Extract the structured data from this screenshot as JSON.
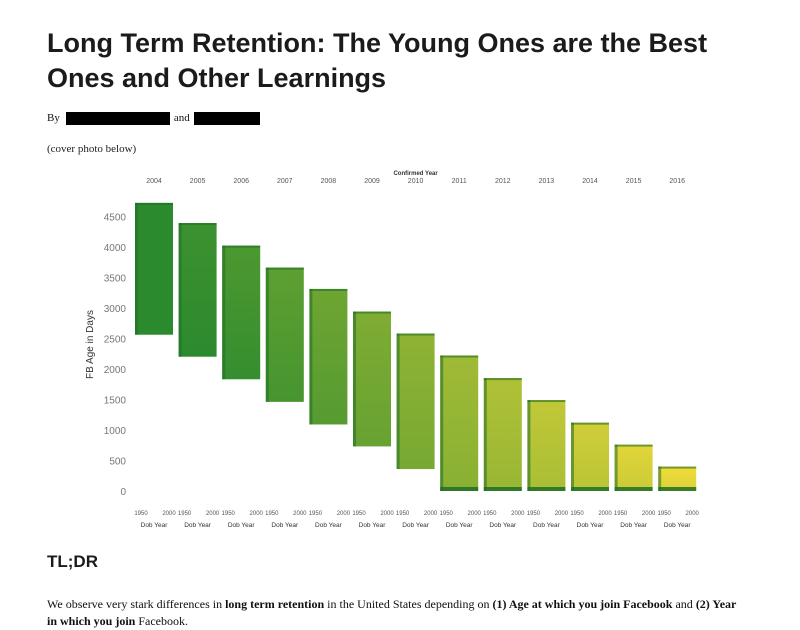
{
  "title": "Long Term Retention: The Young Ones are the Best Ones and Other Learnings",
  "byline": {
    "by": "By",
    "and": "and"
  },
  "cover_note": "(cover photo below)",
  "tldr_heading": "TL;DR",
  "summary": {
    "t1": "We observe very stark differences in ",
    "b1": "long term retention",
    "t2": " in the United States depending on ",
    "b2": "(1) Age at which you join Facebook",
    "t3": " and ",
    "b3": "(2) Year in which you join",
    "t4": " Facebook."
  },
  "colors": {
    "early": "#2c8a2e",
    "late": "#f2dc3a",
    "edge": "#1f6e25"
  },
  "chart_data": {
    "type": "heatmap",
    "top_axis_title": "Confirmed Year",
    "ylabel": "FB Age in Days",
    "ylim": [
      0,
      4800
    ],
    "yticks": [
      0,
      500,
      1000,
      1500,
      2000,
      2500,
      3000,
      3500,
      4000,
      4500
    ],
    "columns": [
      "2004",
      "2005",
      "2006",
      "2007",
      "2008",
      "2009",
      "2010",
      "2011",
      "2012",
      "2013",
      "2014",
      "2015",
      "2016"
    ],
    "x_sub_ticks": [
      "1950",
      "2000"
    ],
    "x_sub_label": "Dob Year",
    "fb_age_max": [
      4720,
      4390,
      4020,
      3660,
      3310,
      2940,
      2580,
      2220,
      1850,
      1490,
      1120,
      760,
      400
    ],
    "fb_age_min": [
      2560,
      2200,
      1830,
      1460,
      1090,
      730,
      360,
      0,
      0,
      0,
      0,
      0,
      0
    ]
  }
}
